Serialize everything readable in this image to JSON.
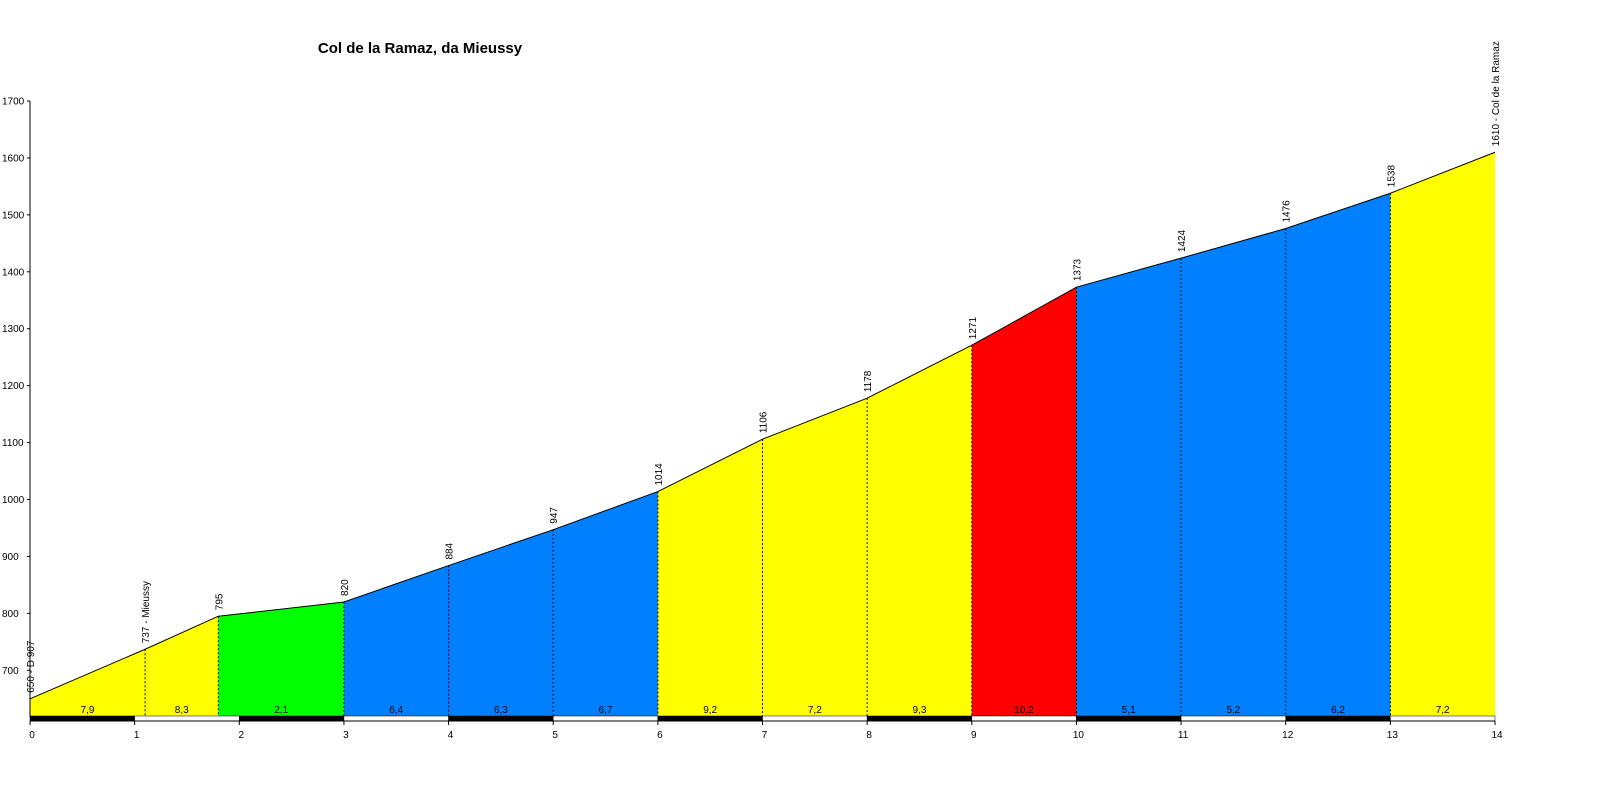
{
  "chart_data": {
    "type": "elevation-profile",
    "title": "Col de la Ramaz, da Mieussy",
    "x": [
      0,
      1.1,
      1.8,
      3,
      4,
      5,
      6,
      7,
      8,
      9,
      10,
      11,
      12,
      13,
      14
    ],
    "values": [
      650,
      737,
      795,
      820,
      884,
      947,
      1014,
      1106,
      1178,
      1271,
      1373,
      1424,
      1476,
      1538,
      1610
    ],
    "value_labels": [
      "650 - D 907",
      "737 - Mieussy",
      "795",
      "820",
      "884",
      "947",
      "1014",
      "1106",
      "1178",
      "1271",
      "1373",
      "1424",
      "1476",
      "1538",
      "1610 - Col de la Ramaz"
    ],
    "gradients": [
      7.9,
      8.3,
      2.1,
      6.4,
      6.3,
      6.7,
      9.2,
      7.2,
      9.3,
      10.2,
      5.1,
      5.2,
      6.2,
      7.2
    ],
    "gradient_labels": [
      "7,9",
      "8,3",
      "2,1",
      "6,4",
      "6,3",
      "6,7",
      "9,2",
      "7,2",
      "9,3",
      "10,2",
      "5,1",
      "5,2",
      "6,2",
      "7,2"
    ],
    "colors": [
      "#ffff00",
      "#ffff00",
      "#00ff00",
      "#0080ff",
      "#0080ff",
      "#0080ff",
      "#ffff00",
      "#ffff00",
      "#ffff00",
      "#ff0000",
      "#0080ff",
      "#0080ff",
      "#0080ff",
      "#ffff00"
    ],
    "xlim": [
      0,
      14
    ],
    "xticks": [
      0,
      1,
      2,
      3,
      4,
      5,
      6,
      7,
      8,
      9,
      10,
      11,
      12,
      13,
      14
    ],
    "ylim": [
      618,
      1700
    ],
    "yticks": [
      700,
      800,
      900,
      1000,
      1100,
      1200,
      1300,
      1400,
      1500,
      1600,
      1700
    ]
  }
}
